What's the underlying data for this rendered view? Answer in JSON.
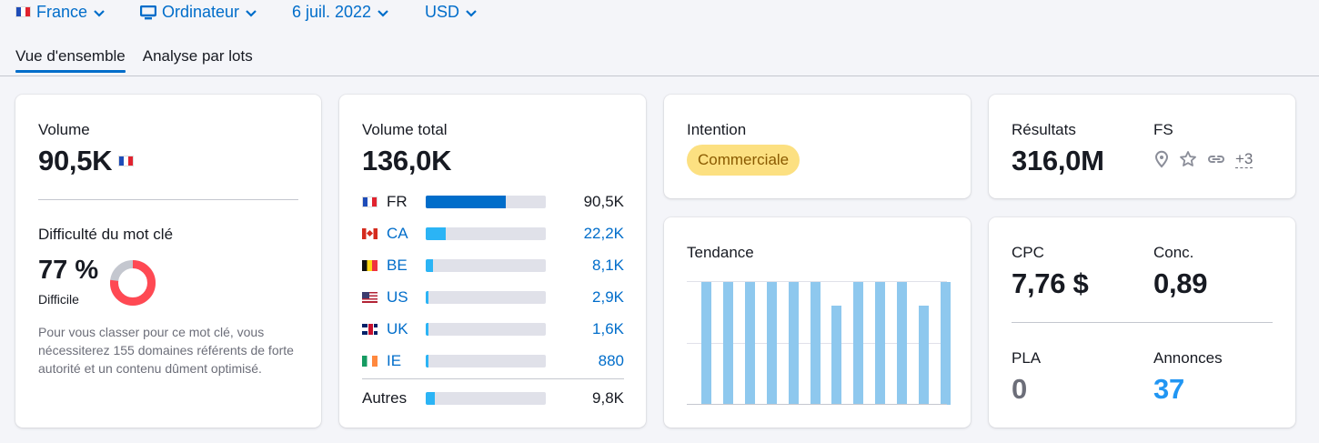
{
  "filters": {
    "country": "France",
    "device": "Ordinateur",
    "date": "6 juil. 2022",
    "currency": "USD"
  },
  "tabs": [
    {
      "label": "Vue d'ensemble",
      "active": true
    },
    {
      "label": "Analyse par lots",
      "active": false
    }
  ],
  "volume_card": {
    "volume_label": "Volume",
    "volume_value": "90,5K",
    "kd_label": "Difficulté du mot clé",
    "kd_value": "77 %",
    "kd_percent": 77,
    "kd_text": "Difficile",
    "kd_description": "Pour vous classer pour ce mot clé, vous nécessiterez 155 domaines référents de forte autorité et un contenu dûment optimisé.",
    "kd_color": "#ff4953"
  },
  "global_card": {
    "label": "Volume total",
    "value": "136,0K",
    "countries": [
      {
        "code": "FR",
        "flag": "fr",
        "value": "90,5K",
        "share": 0.665,
        "link": false
      },
      {
        "code": "CA",
        "flag": "ca",
        "value": "22,2K",
        "share": 0.163,
        "link": true
      },
      {
        "code": "BE",
        "flag": "be",
        "value": "8,1K",
        "share": 0.06,
        "link": true
      },
      {
        "code": "US",
        "flag": "us",
        "value": "2,9K",
        "share": 0.021,
        "link": true
      },
      {
        "code": "UK",
        "flag": "uk",
        "value": "1,6K",
        "share": 0.012,
        "link": true
      },
      {
        "code": "IE",
        "flag": "ie",
        "value": "880",
        "share": 0.006,
        "link": true
      }
    ],
    "other_label": "Autres",
    "other_value": "9,8K",
    "other_share": 0.072
  },
  "intent_card": {
    "label": "Intention",
    "badge": "Commerciale",
    "badge_color": "#fce081"
  },
  "trend_card": {
    "label": "Tendance",
    "values": [
      1,
      1,
      1,
      1,
      1,
      1,
      0.81,
      1,
      1,
      1,
      0.81,
      1
    ]
  },
  "results_card": {
    "results_label": "Résultats",
    "results_value": "316,0M",
    "fs_label": "FS",
    "fs_icons": [
      "location-pin-icon",
      "star-icon",
      "link-icon"
    ],
    "fs_more": "+3"
  },
  "cpc_card": {
    "cpc_label": "CPC",
    "cpc_value": "7,76 $",
    "comp_label": "Conc.",
    "comp_value": "0,89",
    "pla_label": "PLA",
    "pla_value": "0",
    "ads_label": "Annonces",
    "ads_value": "37",
    "ads_color": "#2196f3"
  }
}
